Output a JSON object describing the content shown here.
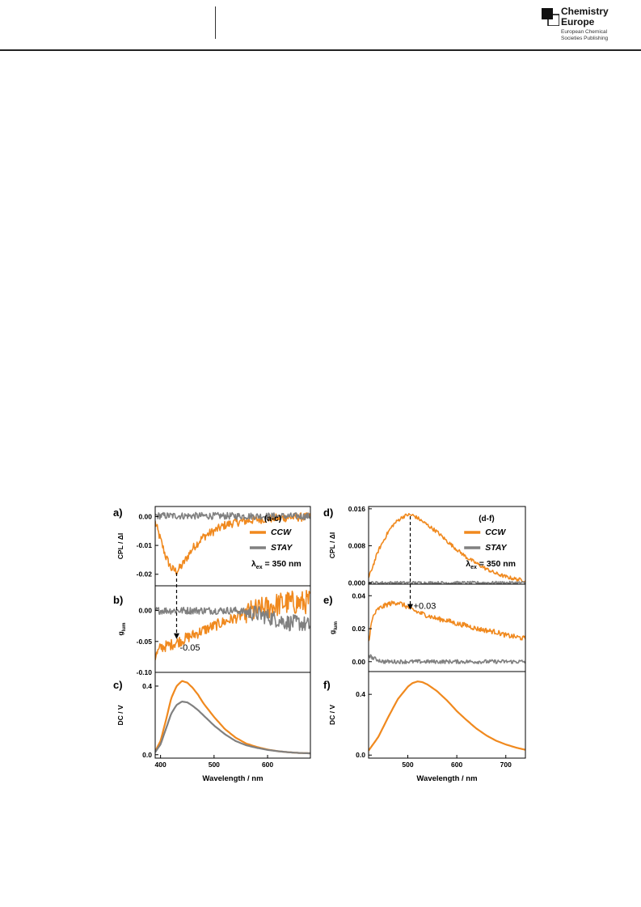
{
  "header": {
    "logo_line1": "Chemistry",
    "logo_line2": "Europe",
    "logo_sub1": "European Chemical",
    "logo_sub2": "Societies Publishing"
  },
  "colors": {
    "ccw": "#f0891e",
    "stay": "#808080"
  },
  "chart_data": [
    {
      "panel": "a)",
      "type": "line",
      "ylabel": "CPL / ΔI",
      "ylim": [
        -0.024,
        0.0035
      ],
      "xlim": [
        390,
        680
      ],
      "yticks": [
        0.0,
        -0.01,
        -0.02
      ],
      "ytick_labels": [
        "0.00",
        "-0.01",
        "-0.02"
      ],
      "series": [
        {
          "name": "CCW",
          "color": "ccw",
          "noise": 0.0015,
          "x": [
            390,
            400,
            410,
            420,
            430,
            440,
            450,
            460,
            480,
            500,
            520,
            540,
            560,
            580,
            600,
            620,
            640,
            660,
            680
          ],
          "y": [
            -0.002,
            -0.008,
            -0.014,
            -0.018,
            -0.019,
            -0.017,
            -0.014,
            -0.011,
            -0.007,
            -0.005,
            -0.003,
            -0.002,
            -0.0015,
            -0.001,
            -0.0007,
            -0.0005,
            -0.0003,
            -0.0002,
            -0.0002
          ]
        },
        {
          "name": "STAY",
          "color": "stay",
          "noise": 0.0012,
          "x": [
            390,
            680
          ],
          "y": [
            0.0003,
            0.0001
          ]
        }
      ],
      "legend": {
        "header": "(a-c)",
        "entries": [
          "CCW",
          "STAY"
        ],
        "excitation": "λex = 350 nm"
      },
      "annotation": {
        "x": 430,
        "from_panel": "a)"
      }
    },
    {
      "panel": "b)",
      "type": "line",
      "ylabel": "glum",
      "ylim": [
        -0.1,
        0.04
      ],
      "xlim": [
        390,
        680
      ],
      "yticks": [
        0.0,
        -0.05,
        -0.1
      ],
      "ytick_labels": [
        "0.00",
        "-0.05",
        "-0.10"
      ],
      "series": [
        {
          "name": "CCW",
          "color": "ccw",
          "noise": 0.009,
          "x": [
            390,
            400,
            420,
            440,
            460,
            480,
            500,
            520,
            540,
            560,
            580,
            600,
            620,
            640,
            660,
            680
          ],
          "y": [
            -0.075,
            -0.06,
            -0.055,
            -0.048,
            -0.04,
            -0.032,
            -0.025,
            -0.018,
            -0.012,
            -0.005,
            0.0,
            0.005,
            0.01,
            0.013,
            0.012,
            0.015
          ]
        },
        {
          "name": "STAY",
          "color": "stay",
          "noise": 0.006,
          "x": [
            390,
            480,
            540,
            580,
            600,
            620,
            640,
            660,
            680
          ],
          "y": [
            0.0,
            0.0,
            0.0,
            -0.005,
            -0.01,
            -0.015,
            -0.02,
            -0.02,
            -0.025
          ]
        }
      ],
      "annotation": {
        "text": "-0.05",
        "x": 430,
        "y": -0.05
      }
    },
    {
      "panel": "c)",
      "type": "line",
      "ylabel": "DC / V",
      "ylim": [
        -0.02,
        0.48
      ],
      "xlim": [
        390,
        680
      ],
      "yticks": [
        0.0,
        0.4
      ],
      "ytick_labels": [
        "0.0",
        "0.4"
      ],
      "xticks": [
        400,
        500,
        600
      ],
      "xtick_labels": [
        "400",
        "500",
        "600"
      ],
      "xlabel": "Wavelength / nm",
      "series": [
        {
          "name": "CCW",
          "color": "ccw",
          "noise": 0,
          "x": [
            390,
            400,
            410,
            420,
            430,
            440,
            450,
            460,
            470,
            480,
            500,
            520,
            540,
            560,
            580,
            600,
            620,
            640,
            660,
            680
          ],
          "y": [
            0.02,
            0.08,
            0.2,
            0.33,
            0.4,
            0.43,
            0.42,
            0.39,
            0.35,
            0.3,
            0.22,
            0.15,
            0.1,
            0.065,
            0.045,
            0.03,
            0.02,
            0.014,
            0.01,
            0.008
          ]
        },
        {
          "name": "STAY",
          "color": "stay",
          "noise": 0,
          "x": [
            390,
            400,
            410,
            420,
            430,
            440,
            450,
            460,
            470,
            480,
            500,
            520,
            540,
            560,
            580,
            600,
            620,
            640,
            660,
            680
          ],
          "y": [
            0.015,
            0.06,
            0.15,
            0.24,
            0.29,
            0.31,
            0.305,
            0.285,
            0.26,
            0.23,
            0.17,
            0.12,
            0.08,
            0.055,
            0.04,
            0.028,
            0.02,
            0.014,
            0.01,
            0.008
          ]
        }
      ]
    },
    {
      "panel": "d)",
      "type": "line",
      "ylabel": "CPL / ΔI",
      "ylim": [
        -0.0003,
        0.0165
      ],
      "xlim": [
        420,
        740
      ],
      "yticks": [
        0.0,
        0.008,
        0.016
      ],
      "ytick_labels": [
        "0.000",
        "0.008",
        "0.016"
      ],
      "series": [
        {
          "name": "CCW",
          "color": "ccw",
          "noise": 0.0004,
          "x": [
            420,
            430,
            440,
            450,
            460,
            470,
            480,
            490,
            500,
            510,
            520,
            540,
            560,
            580,
            600,
            620,
            640,
            660,
            680,
            700,
            720,
            740
          ],
          "y": [
            0.001,
            0.004,
            0.007,
            0.009,
            0.011,
            0.0125,
            0.0135,
            0.0143,
            0.0147,
            0.0146,
            0.014,
            0.0125,
            0.011,
            0.009,
            0.0072,
            0.0055,
            0.0042,
            0.003,
            0.002,
            0.0013,
            0.0008,
            0.0005
          ]
        },
        {
          "name": "STAY",
          "color": "stay",
          "noise": 0.0003,
          "x": [
            420,
            740
          ],
          "y": [
            0.0,
            0.0
          ]
        }
      ],
      "legend": {
        "header": "(d-f)",
        "entries": [
          "CCW",
          "STAY"
        ],
        "excitation": "λex = 350 nm"
      },
      "annotation": {
        "x": 505,
        "from_panel": "d)"
      }
    },
    {
      "panel": "e)",
      "type": "line",
      "ylabel": "glum",
      "ylim": [
        -0.006,
        0.047
      ],
      "xlim": [
        420,
        740
      ],
      "yticks": [
        0.0,
        0.02,
        0.04
      ],
      "ytick_labels": [
        "0.00",
        "0.02",
        "0.04"
      ],
      "series": [
        {
          "name": "CCW",
          "color": "ccw",
          "noise": 0.0015,
          "x": [
            420,
            425,
            430,
            440,
            460,
            480,
            500,
            520,
            540,
            560,
            580,
            600,
            620,
            640,
            660,
            680,
            700,
            720,
            740
          ],
          "y": [
            0.012,
            0.022,
            0.028,
            0.032,
            0.035,
            0.036,
            0.033,
            0.03,
            0.028,
            0.026,
            0.025,
            0.023,
            0.022,
            0.02,
            0.019,
            0.018,
            0.016,
            0.015,
            0.014
          ]
        },
        {
          "name": "STAY",
          "color": "stay",
          "noise": 0.0012,
          "x": [
            420,
            430,
            450,
            740
          ],
          "y": [
            0.004,
            0.002,
            0.0,
            0.0
          ]
        }
      ],
      "annotation": {
        "text": "+0.03",
        "x": 505,
        "y": 0.03
      }
    },
    {
      "panel": "f)",
      "type": "line",
      "ylabel": "DC / V",
      "ylim": [
        -0.02,
        0.55
      ],
      "xlim": [
        420,
        740
      ],
      "yticks": [
        0.0,
        0.4
      ],
      "ytick_labels": [
        "0.0",
        "0.4"
      ],
      "xticks": [
        500,
        600,
        700
      ],
      "xtick_labels": [
        "500",
        "600",
        "700"
      ],
      "xlabel": "Wavelength / nm",
      "series": [
        {
          "name": "CCW",
          "color": "ccw",
          "noise": 0,
          "x": [
            420,
            440,
            460,
            480,
            500,
            510,
            520,
            530,
            540,
            560,
            580,
            600,
            620,
            640,
            660,
            680,
            700,
            720,
            740
          ],
          "y": [
            0.03,
            0.12,
            0.25,
            0.37,
            0.45,
            0.475,
            0.485,
            0.48,
            0.465,
            0.42,
            0.36,
            0.29,
            0.23,
            0.175,
            0.13,
            0.095,
            0.07,
            0.05,
            0.035
          ]
        }
      ]
    }
  ]
}
